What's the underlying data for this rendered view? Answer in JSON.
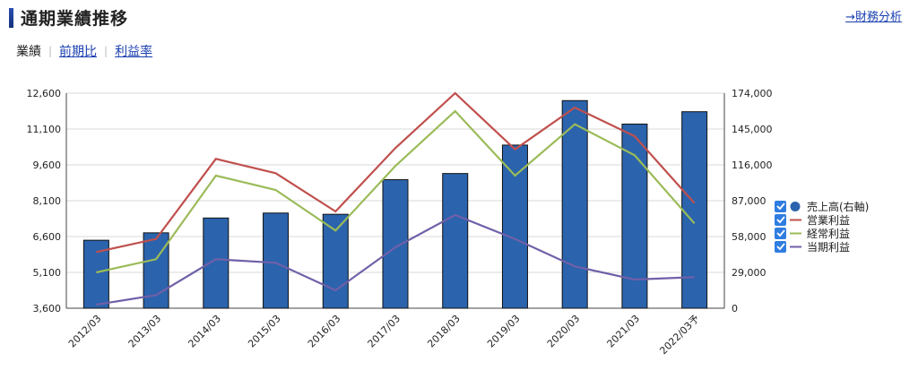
{
  "header": {
    "title": "通期業績推移",
    "financial_link": "→財務分析"
  },
  "tabs": [
    {
      "label": "業績",
      "active": true
    },
    {
      "label": "前期比",
      "active": false
    },
    {
      "label": "利益率",
      "active": false
    }
  ],
  "colors": {
    "sales": "#2b63ad",
    "operating": "#c0504d",
    "ordinary": "#9bbb59",
    "net": "#7060a8",
    "checkbox": "#2f7de1"
  },
  "chart_data": {
    "type": "bar",
    "categories": [
      "2012/03",
      "2013/03",
      "2014/03",
      "2015/03",
      "2016/03",
      "2017/03",
      "2018/03",
      "2019/03",
      "2020/03",
      "2021/03",
      "2022/03予"
    ],
    "left_axis": {
      "min": 3600,
      "max": 12600,
      "ticks": [
        "3,600",
        "5,100",
        "6,600",
        "8,100",
        "9,600",
        "11,100",
        "12,600"
      ]
    },
    "right_axis": {
      "min": 0,
      "max": 174000,
      "ticks": [
        "0",
        "29,000",
        "58,000",
        "87,000",
        "116,000",
        "145,000",
        "174,000"
      ]
    },
    "series": [
      {
        "name": "売上高(右軸)",
        "kind": "bar",
        "axis": "right",
        "values": [
          55000,
          61000,
          73000,
          77000,
          76000,
          104000,
          109000,
          132000,
          168000,
          149000,
          159000
        ]
      },
      {
        "name": "営業利益",
        "kind": "line",
        "axis": "left",
        "values": [
          5950,
          6500,
          9850,
          9250,
          7650,
          10300,
          12600,
          10250,
          12000,
          10800,
          8000
        ]
      },
      {
        "name": "経常利益",
        "kind": "line",
        "axis": "left",
        "values": [
          5100,
          5650,
          9150,
          8550,
          6850,
          9550,
          11850,
          9150,
          11300,
          10000,
          7150
        ]
      },
      {
        "name": "当期利益",
        "kind": "line",
        "axis": "left",
        "values": [
          3750,
          4150,
          5650,
          5500,
          4350,
          6150,
          7500,
          6500,
          5350,
          4800,
          4900
        ]
      }
    ],
    "legend_position": "right",
    "grid": true
  }
}
